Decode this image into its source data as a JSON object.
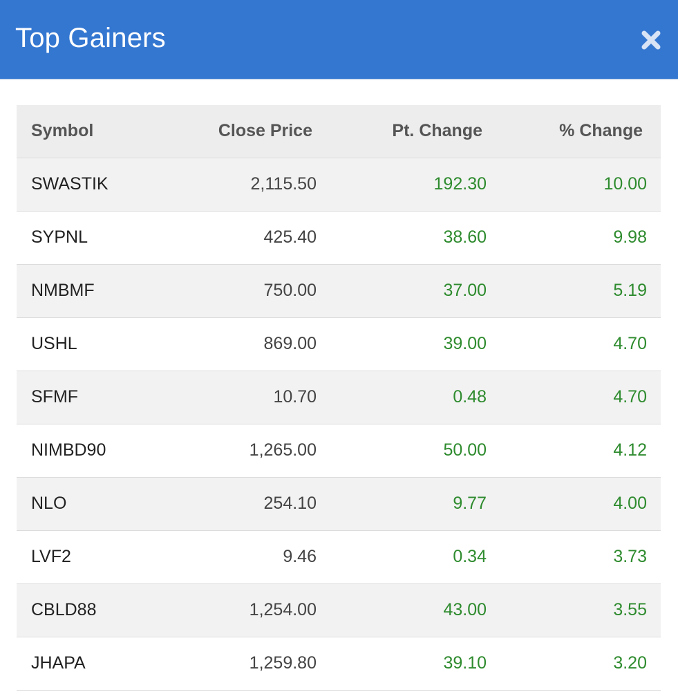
{
  "header": {
    "title": "Top Gainers",
    "close_icon": "close-icon",
    "background_color": "#3477d1"
  },
  "table": {
    "columns": [
      "Symbol",
      "Close Price",
      "Pt. Change",
      "% Change"
    ],
    "gain_color": "#2e8b2e",
    "rows": [
      {
        "symbol": "SWASTIK",
        "close_price": "2,115.50",
        "pt_change": "192.30",
        "pct_change": "10.00"
      },
      {
        "symbol": "SYPNL",
        "close_price": "425.40",
        "pt_change": "38.60",
        "pct_change": "9.98"
      },
      {
        "symbol": "NMBMF",
        "close_price": "750.00",
        "pt_change": "37.00",
        "pct_change": "5.19"
      },
      {
        "symbol": "USHL",
        "close_price": "869.00",
        "pt_change": "39.00",
        "pct_change": "4.70"
      },
      {
        "symbol": "SFMF",
        "close_price": "10.70",
        "pt_change": "0.48",
        "pct_change": "4.70"
      },
      {
        "symbol": "NIMBD90",
        "close_price": "1,265.00",
        "pt_change": "50.00",
        "pct_change": "4.12"
      },
      {
        "symbol": "NLO",
        "close_price": "254.10",
        "pt_change": "9.77",
        "pct_change": "4.00"
      },
      {
        "symbol": "LVF2",
        "close_price": "9.46",
        "pt_change": "0.34",
        "pct_change": "3.73"
      },
      {
        "symbol": "CBLD88",
        "close_price": "1,254.00",
        "pt_change": "43.00",
        "pct_change": "3.55"
      },
      {
        "symbol": "JHAPA",
        "close_price": "1,259.80",
        "pt_change": "39.10",
        "pct_change": "3.20"
      }
    ]
  }
}
